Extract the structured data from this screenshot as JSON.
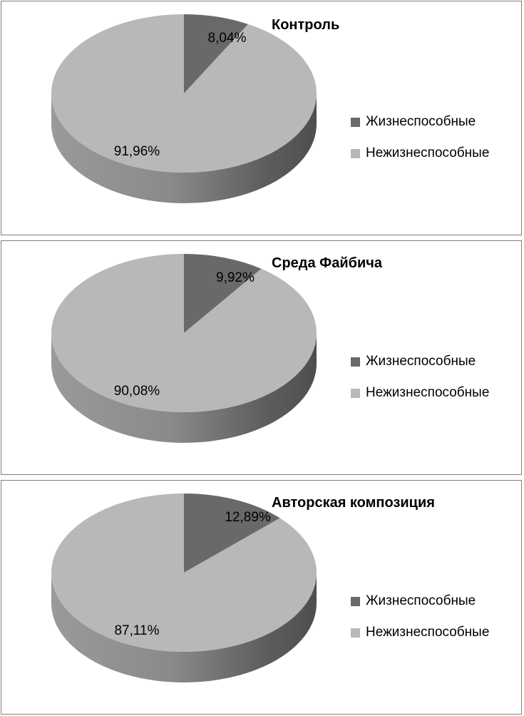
{
  "chart_data": [
    {
      "type": "pie",
      "title": "Контроль",
      "categories": [
        "Жизнеспособные",
        "Нежизнеспособные"
      ],
      "values": [
        8.04,
        91.96
      ],
      "labels": [
        "8,04%",
        "91,96%"
      ],
      "colors": [
        "#696969",
        "#b8b8b8"
      ],
      "legend": "right"
    },
    {
      "type": "pie",
      "title": "Среда Файбича",
      "categories": [
        "Жизнеспособные",
        "Нежизнеспособные"
      ],
      "values": [
        9.92,
        90.08
      ],
      "labels": [
        "9,92%",
        "90,08%"
      ],
      "colors": [
        "#696969",
        "#b8b8b8"
      ],
      "legend": "right"
    },
    {
      "type": "pie",
      "title": "Авторская композиция",
      "categories": [
        "Жизнеспособные",
        "Нежизнеспособные"
      ],
      "values": [
        12.89,
        87.11
      ],
      "labels": [
        "12,89%",
        "87,11%"
      ],
      "colors": [
        "#696969",
        "#b8b8b8"
      ],
      "legend": "right"
    }
  ]
}
